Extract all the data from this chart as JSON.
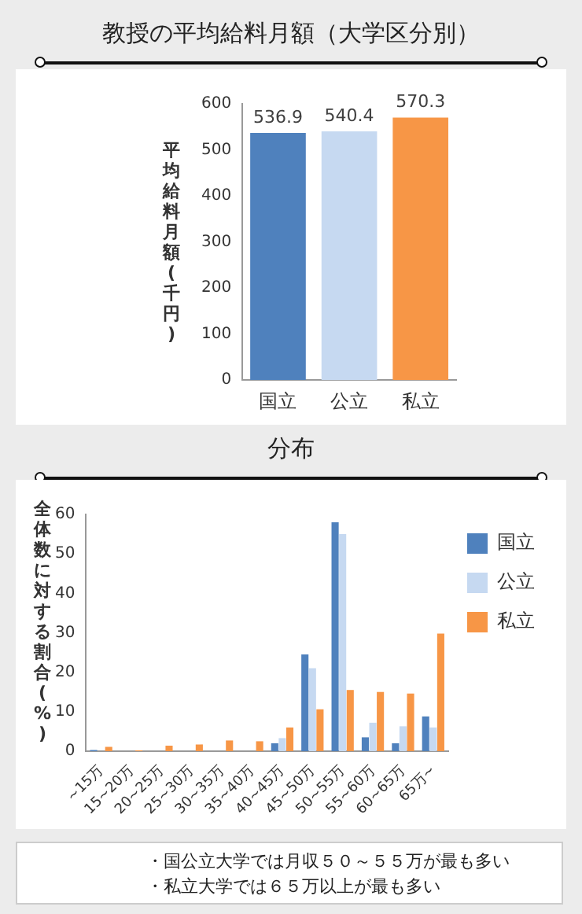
{
  "chart_data": [
    {
      "type": "bar",
      "title": "教授の平均給料月額（大学区分別）",
      "ylabel": "平均給料月額(千円)",
      "categories": [
        "国立",
        "公立",
        "私立"
      ],
      "values": [
        536.9,
        540.4,
        570.3
      ],
      "colors": [
        "#4f81bd",
        "#c6d9f1",
        "#f79646"
      ],
      "ylim": [
        0,
        600
      ],
      "yticks": [
        0,
        100,
        200,
        300,
        400,
        500,
        600
      ],
      "data_labels": true
    },
    {
      "type": "bar",
      "title": "分布",
      "ylabel": "全体数に対する割合(%)",
      "categories": [
        "~15万",
        "15~20万",
        "20~25万",
        "25~30万",
        "30~35万",
        "35~40万",
        "40~45万",
        "45~50万",
        "50~55万",
        "55~60万",
        "60~65万",
        "65万~"
      ],
      "series": [
        {
          "name": "国立",
          "color": "#4f81bd",
          "values": [
            0.3,
            0,
            0,
            0,
            0,
            0,
            2,
            24.5,
            58,
            3.5,
            2,
            8.8
          ]
        },
        {
          "name": "公立",
          "color": "#c6d9f1",
          "values": [
            0,
            0,
            null,
            0,
            0,
            0,
            3.3,
            21,
            55,
            7.2,
            6.3,
            6
          ]
        },
        {
          "name": "私立",
          "color": "#f79646",
          "values": [
            1.1,
            0.2,
            1.4,
            1.7,
            2.7,
            2.5,
            6,
            10.6,
            15.5,
            15,
            14.6,
            29.8
          ]
        }
      ],
      "ylim": [
        0,
        60
      ],
      "yticks": [
        0,
        10,
        20,
        30,
        40,
        50,
        60
      ],
      "legend": "top right",
      "annotations": [
        "・国公立大学では月収５０～５５万が最も多い",
        "・私立大学では６５万以上が最も多い"
      ]
    }
  ]
}
